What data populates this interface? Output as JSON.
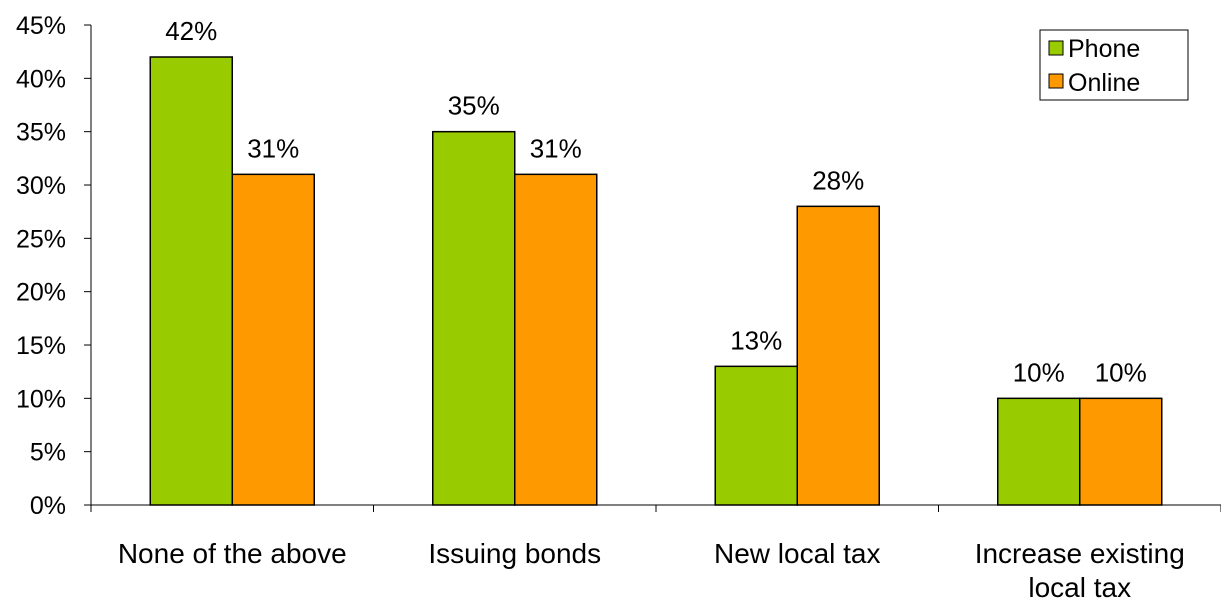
{
  "chart_data": {
    "type": "bar",
    "categories": [
      "None of the above",
      "Issuing bonds",
      "New local tax",
      "Increase existing local tax"
    ],
    "category_lines": [
      [
        "None of the above"
      ],
      [
        "Issuing bonds"
      ],
      [
        "New local tax"
      ],
      [
        "Increase existing",
        "local tax"
      ]
    ],
    "series": [
      {
        "name": "Phone",
        "values": [
          42,
          35,
          13,
          10
        ],
        "labels": [
          "42%",
          "35%",
          "13%",
          "10%"
        ],
        "color": "#99CC00"
      },
      {
        "name": "Online",
        "values": [
          31,
          31,
          28,
          10
        ],
        "labels": [
          "31%",
          "31%",
          "28%",
          "10%"
        ],
        "color": "#FF9900"
      }
    ],
    "yticks": [
      "0%",
      "5%",
      "10%",
      "15%",
      "20%",
      "25%",
      "30%",
      "35%",
      "40%",
      "45%"
    ],
    "ylim": [
      0,
      45
    ],
    "ytick_step": 5,
    "grid": false,
    "legend_position": "top-right",
    "title": "",
    "xlabel": "",
    "ylabel": ""
  }
}
